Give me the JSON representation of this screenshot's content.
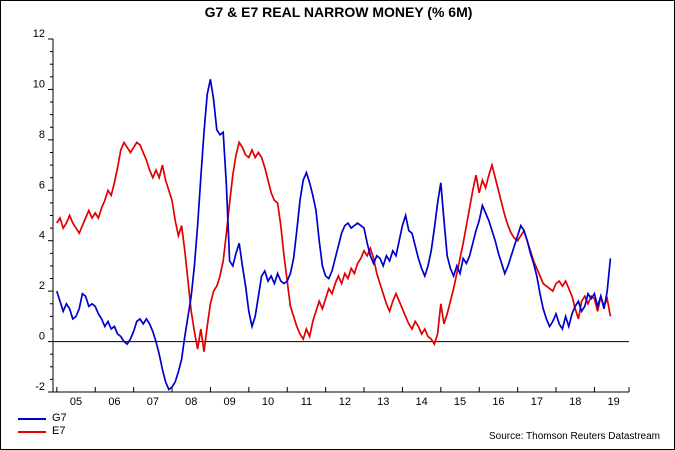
{
  "title": "G7 & E7 REAL NARROW MONEY (% 6M)",
  "source": "Source: Thomson Reuters Datastream",
  "legend": {
    "items": [
      {
        "label": "G7",
        "color": "#0000cc"
      },
      {
        "label": "E7",
        "color": "#e00000"
      }
    ]
  },
  "chart_data": {
    "type": "line",
    "title": "G7 & E7 REAL NARROW MONEY (% 6M)",
    "xlabel": "",
    "ylabel": "",
    "x_start_year": 2005.0,
    "x_step_years": 0.08333,
    "x_tick_years": [
      2005,
      2006,
      2007,
      2008,
      2009,
      2010,
      2011,
      2012,
      2013,
      2014,
      2015,
      2016,
      2017,
      2018,
      2019
    ],
    "x_tick_labels": [
      "05",
      "06",
      "07",
      "08",
      "09",
      "10",
      "11",
      "12",
      "13",
      "14",
      "15",
      "16",
      "17",
      "18",
      "19"
    ],
    "xlim": [
      2004.9,
      2019.9
    ],
    "ylim": [
      -2,
      12
    ],
    "y_major_ticks": [
      -2,
      0,
      2,
      4,
      6,
      8,
      10,
      12
    ],
    "y_minor_step": 0.5,
    "zero_line": true,
    "grid": false,
    "legend_position": "bottom-left",
    "series": [
      {
        "name": "E7",
        "color": "#e00000",
        "values": [
          4.7,
          4.9,
          4.5,
          4.7,
          5.0,
          4.7,
          4.5,
          4.3,
          4.6,
          4.9,
          5.2,
          4.9,
          5.1,
          4.9,
          5.3,
          5.6,
          6.0,
          5.8,
          6.3,
          6.9,
          7.6,
          7.9,
          7.7,
          7.5,
          7.7,
          7.9,
          7.8,
          7.5,
          7.2,
          6.8,
          6.5,
          6.8,
          6.5,
          7.0,
          6.4,
          6.0,
          5.6,
          4.8,
          4.2,
          4.6,
          3.6,
          2.4,
          1.2,
          0.4,
          -0.3,
          0.5,
          -0.4,
          0.6,
          1.5,
          2.0,
          2.2,
          2.6,
          3.2,
          4.3,
          5.5,
          6.6,
          7.4,
          7.9,
          7.7,
          7.4,
          7.3,
          7.6,
          7.3,
          7.5,
          7.3,
          6.9,
          6.4,
          5.9,
          5.6,
          5.5,
          4.6,
          3.4,
          2.4,
          1.4,
          1.0,
          0.6,
          0.3,
          0.1,
          0.5,
          0.2,
          0.8,
          1.2,
          1.6,
          1.3,
          1.7,
          2.1,
          1.9,
          2.3,
          2.6,
          2.3,
          2.7,
          2.5,
          2.9,
          2.7,
          3.1,
          3.3,
          3.6,
          3.4,
          3.7,
          3.3,
          2.7,
          2.3,
          1.9,
          1.5,
          1.2,
          1.6,
          1.9,
          1.6,
          1.3,
          1.0,
          0.7,
          0.5,
          0.8,
          0.6,
          0.3,
          0.5,
          0.2,
          0.1,
          -0.1,
          0.3,
          1.5,
          0.7,
          1.1,
          1.6,
          2.1,
          2.7,
          3.3,
          3.9,
          4.6,
          5.3,
          6.0,
          6.6,
          5.9,
          6.4,
          6.1,
          6.6,
          7.0,
          6.5,
          6.0,
          5.5,
          5.0,
          4.6,
          4.3,
          4.1,
          4.0,
          4.2,
          4.4,
          4.0,
          3.6,
          3.2,
          2.9,
          2.6,
          2.3,
          2.2,
          2.1,
          2.0,
          2.3,
          2.4,
          2.2,
          2.4,
          2.1,
          1.8,
          1.3,
          0.9,
          1.6,
          1.8,
          1.5,
          1.8,
          1.7,
          1.2,
          1.8,
          1.4,
          1.7,
          1.0
        ]
      },
      {
        "name": "G7",
        "color": "#0000cc",
        "values": [
          2.0,
          1.6,
          1.2,
          1.5,
          1.3,
          0.9,
          1.0,
          1.3,
          1.9,
          1.8,
          1.4,
          1.5,
          1.4,
          1.1,
          0.9,
          0.6,
          0.8,
          0.5,
          0.6,
          0.3,
          0.2,
          0.0,
          -0.1,
          0.1,
          0.4,
          0.8,
          0.9,
          0.7,
          0.9,
          0.7,
          0.4,
          0.0,
          -0.5,
          -1.1,
          -1.6,
          -1.9,
          -1.8,
          -1.6,
          -1.2,
          -0.7,
          0.2,
          1.0,
          1.8,
          3.0,
          4.6,
          6.5,
          8.3,
          9.8,
          10.4,
          9.6,
          8.4,
          8.2,
          8.3,
          6.2,
          3.2,
          3.0,
          3.5,
          3.9,
          3.0,
          2.2,
          1.2,
          0.6,
          1.0,
          1.8,
          2.6,
          2.8,
          2.4,
          2.6,
          2.3,
          2.7,
          2.4,
          2.3,
          2.4,
          2.7,
          3.3,
          4.4,
          5.6,
          6.4,
          6.7,
          6.3,
          5.8,
          5.2,
          4.0,
          3.0,
          2.6,
          2.5,
          2.8,
          3.3,
          3.8,
          4.3,
          4.6,
          4.7,
          4.5,
          4.6,
          4.7,
          4.6,
          4.5,
          3.9,
          3.4,
          3.1,
          3.4,
          3.3,
          3.0,
          3.4,
          3.2,
          3.6,
          3.4,
          4.0,
          4.6,
          5.0,
          4.4,
          4.3,
          3.8,
          3.3,
          2.9,
          2.6,
          3.0,
          3.6,
          4.5,
          5.5,
          6.3,
          4.8,
          3.4,
          2.9,
          2.6,
          3.0,
          2.7,
          3.3,
          3.1,
          3.4,
          3.9,
          4.4,
          4.8,
          5.4,
          5.1,
          4.8,
          4.4,
          4.0,
          3.5,
          3.1,
          2.7,
          3.0,
          3.4,
          3.8,
          4.2,
          4.6,
          4.4,
          4.0,
          3.5,
          3.1,
          2.6,
          1.9,
          1.3,
          0.9,
          0.6,
          0.8,
          1.1,
          0.7,
          0.5,
          1.0,
          0.6,
          1.1,
          1.4,
          1.6,
          1.2,
          1.4,
          1.9,
          1.7,
          1.9,
          1.4,
          1.8,
          1.3,
          2.0,
          3.3
        ]
      }
    ]
  }
}
